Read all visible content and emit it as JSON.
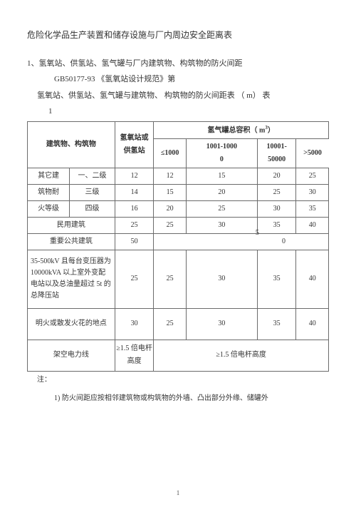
{
  "title": "危险化学品生产装置和储存设施与厂内周边安全距离表",
  "section1": "1、氢氧站、供氢站、氢气罐与厂内建筑物、构筑物的防火间距",
  "gbref": "GB50177-93 《氢氧站设计规范》第",
  "tableCaption": "氢氧站、供氢站、氢气罐与建筑物、 构筑物的防火间距表 （ m） 表",
  "tableNum": "1",
  "header": {
    "h1": "建筑物、构筑物",
    "h2a": "氢氧站或",
    "h2b": "供氢站",
    "h3": "氢气罐总容积（ m",
    "h3sup": "3",
    "h3end": "）",
    "c1": "≤1000",
    "c2a": "1001-1000",
    "c2b": "0",
    "c3a": "10001-",
    "c3b": "50000",
    "c4": ">5000"
  },
  "rows": {
    "r1": {
      "a": "其它建",
      "b": "一、二级",
      "c": "12",
      "d": "12",
      "e": "15",
      "f": "20",
      "g": "25"
    },
    "r2": {
      "a": "筑物耐",
      "b": "三级",
      "c": "14",
      "d": "15",
      "e": "20",
      "f": "25",
      "g": "30"
    },
    "r3": {
      "a": "火等级",
      "b": "四级",
      "c": "16",
      "d": "20",
      "e": "25",
      "f": "30",
      "g": "35"
    },
    "r4": {
      "a": "民用建筑",
      "c": "25",
      "d": "25",
      "e": "30",
      "eover": "5",
      "f": "35",
      "g": "40"
    },
    "r5": {
      "a": "重要公共建筑",
      "c": "50",
      "rest": "0"
    },
    "r6": {
      "a": "35-500kV 且每台变压器为 10000kVA 以上室外变配电站以及总油量超过 5t 的总降压站",
      "c": "25",
      "d": "25",
      "e": "30",
      "f": "35",
      "g": "40"
    },
    "r7": {
      "a": "明火或散发火花的地点",
      "c": "30",
      "d": "25",
      "e": "30",
      "f": "35",
      "g": "40"
    },
    "r8": {
      "a": "架空电力线",
      "c": "≥1.5 倍电杆高度",
      "rest": "≥1.5 倍电杆高度"
    }
  },
  "note": "注：",
  "noteItem": "1) 防火间距应按相邻建筑物或构筑物的外墙、凸出部分外缘、储罐外",
  "pageNum": "1"
}
